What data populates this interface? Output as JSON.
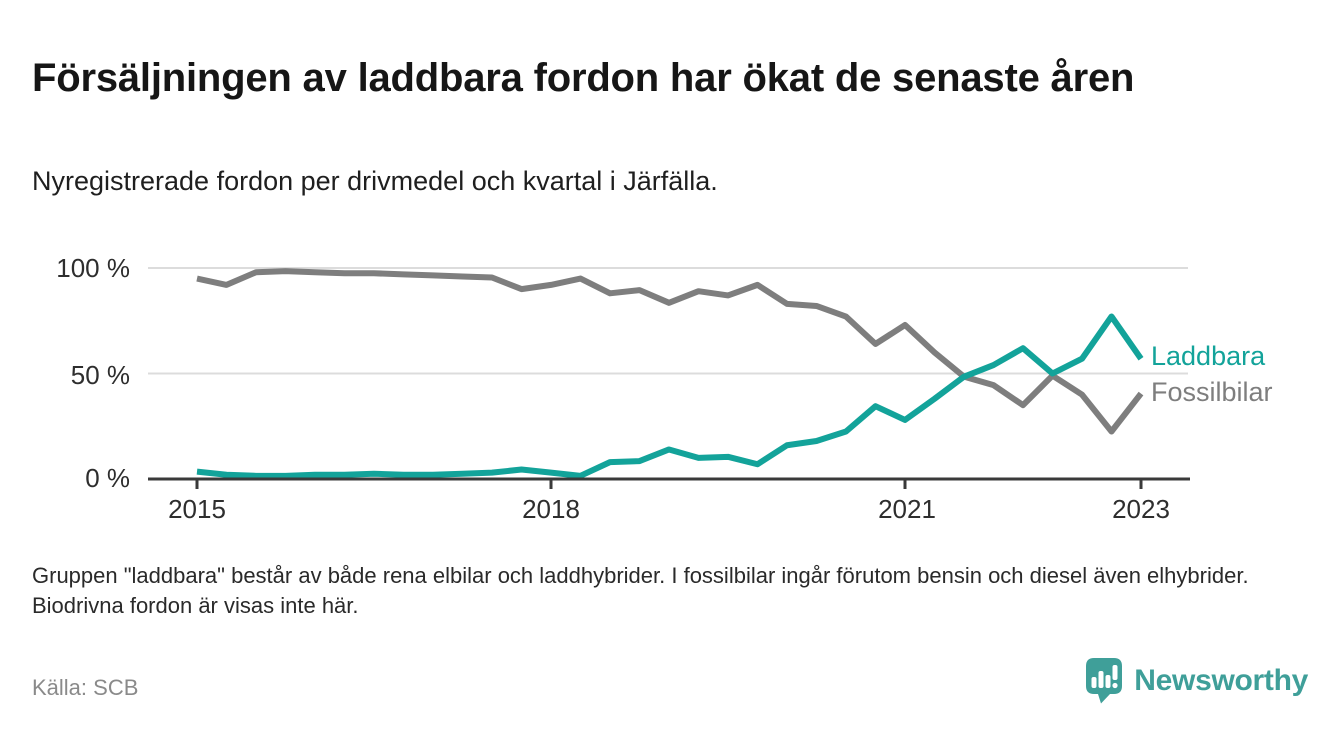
{
  "header": {
    "title": "Försäljningen av laddbara fordon har ökat de senaste åren",
    "subtitle": "Nyregistrerade fordon per drivmedel och kvartal i Järfälla."
  },
  "chart_data": {
    "type": "line",
    "unit": "%",
    "ylim": [
      0,
      100
    ],
    "grid": true,
    "legend_position": "right-of-line-ends",
    "x_start_year": 2015,
    "points_per_year": 4,
    "categories": [
      "2015 K1",
      "2015 K2",
      "2015 K3",
      "2015 K4",
      "2016 K1",
      "2016 K2",
      "2016 K3",
      "2016 K4",
      "2017 K1",
      "2017 K2",
      "2017 K3",
      "2017 K4",
      "2018 K1",
      "2018 K2",
      "2018 K3",
      "2018 K4",
      "2019 K1",
      "2019 K2",
      "2019 K3",
      "2019 K4",
      "2020 K1",
      "2020 K2",
      "2020 K3",
      "2020 K4",
      "2021 K1",
      "2021 K2",
      "2021 K3",
      "2021 K4",
      "2022 K1",
      "2022 K2",
      "2022 K3",
      "2022 K4",
      "2023 K1"
    ],
    "x_ticks": [
      "2015",
      "2018",
      "2021",
      "2023"
    ],
    "y_ticks": [
      {
        "value": 100,
        "label": "100 %"
      },
      {
        "value": 50,
        "label": "50 %"
      },
      {
        "value": 0,
        "label": "0 %"
      }
    ],
    "series": [
      {
        "name": "Laddbara",
        "color": "#13a39a",
        "values": [
          3.5,
          2,
          1.5,
          1.5,
          2,
          2,
          2.5,
          2,
          2,
          2.5,
          3,
          4.5,
          3,
          1.5,
          8,
          8.5,
          14,
          10,
          10.5,
          7,
          16,
          18,
          22.5,
          34.5,
          28,
          38,
          48.5,
          54,
          62,
          50,
          57,
          77,
          57
        ]
      },
      {
        "name": "Fossilbilar",
        "color": "#7e7e7e",
        "values": [
          95,
          92,
          98,
          98.5,
          98,
          97.5,
          97.5,
          97,
          96.5,
          96,
          95.5,
          90,
          92,
          95,
          88,
          89.5,
          83.5,
          89,
          87,
          92,
          83,
          82,
          77,
          64,
          73,
          60,
          48.5,
          44.5,
          35,
          49,
          40,
          22.5,
          40.5
        ]
      }
    ]
  },
  "footer": {
    "note": "Gruppen \"laddbara\" består av både rena elbilar och laddhybrider. I fossilbilar ingår förutom bensin och diesel även elhybrider. Biodrivna fordon är visas inte här.",
    "source": "Källa: SCB",
    "brand": "Newsworthy"
  },
  "colors": {
    "laddbara": "#13a39a",
    "fossilbilar": "#7e7e7e",
    "brand": "#3f9f99",
    "grid": "#dcdcdc",
    "axis": "#3a3a3a"
  }
}
